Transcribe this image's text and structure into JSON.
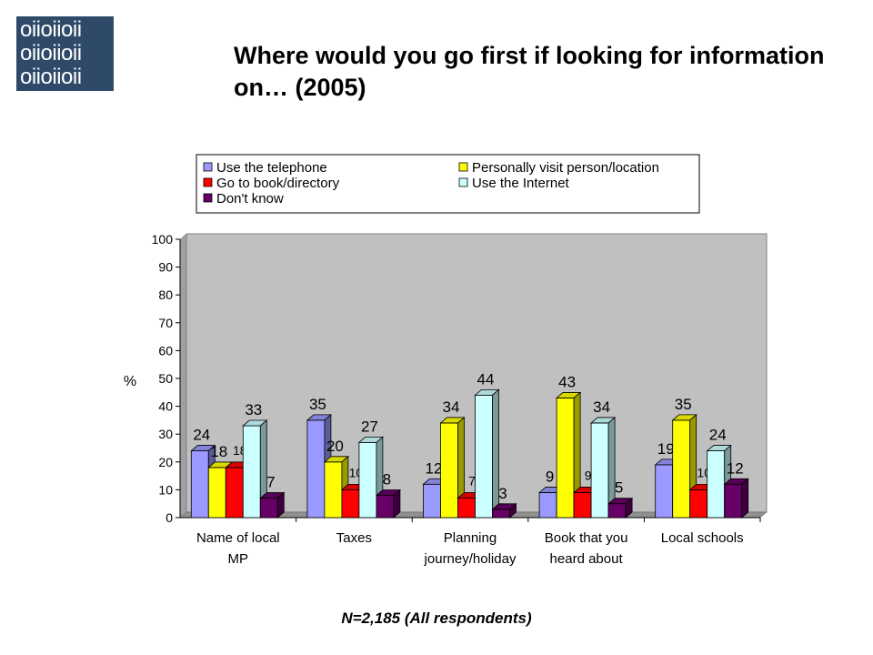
{
  "logo": {
    "rows": [
      "oiioiioii",
      "oiioiioii",
      "oiioiioii"
    ]
  },
  "title": "Where would you go first if looking for information on… (2005)",
  "footnote": "N=2,185 (All respondents)",
  "chart_data": {
    "type": "bar",
    "title": "",
    "ylabel": "%",
    "xlabel": "",
    "ylim": [
      0,
      100
    ],
    "yticks": [
      0,
      10,
      20,
      30,
      40,
      50,
      60,
      70,
      80,
      90,
      100
    ],
    "grid": false,
    "legend_position": "top",
    "categories": [
      [
        "Name of local",
        "MP"
      ],
      [
        "Taxes"
      ],
      [
        "Planning",
        "journey/holiday"
      ],
      [
        "Book that you",
        "heard about"
      ],
      [
        "Local schools"
      ]
    ],
    "series": [
      {
        "name": "Use the telephone",
        "color": "#9999ff",
        "values": [
          24,
          35,
          12,
          9,
          19
        ]
      },
      {
        "name": "Personally visit person/location",
        "color": "#ffff00",
        "values": [
          18,
          20,
          34,
          43,
          35
        ]
      },
      {
        "name": "Go to book/directory",
        "color": "#ff0000",
        "values": [
          18,
          10,
          7,
          9,
          10
        ]
      },
      {
        "name": "Use the Internet",
        "color": "#ccffff",
        "values": [
          33,
          27,
          44,
          34,
          24
        ]
      },
      {
        "name": "Don't know",
        "color": "#660066",
        "values": [
          7,
          8,
          3,
          5,
          12
        ]
      }
    ]
  }
}
